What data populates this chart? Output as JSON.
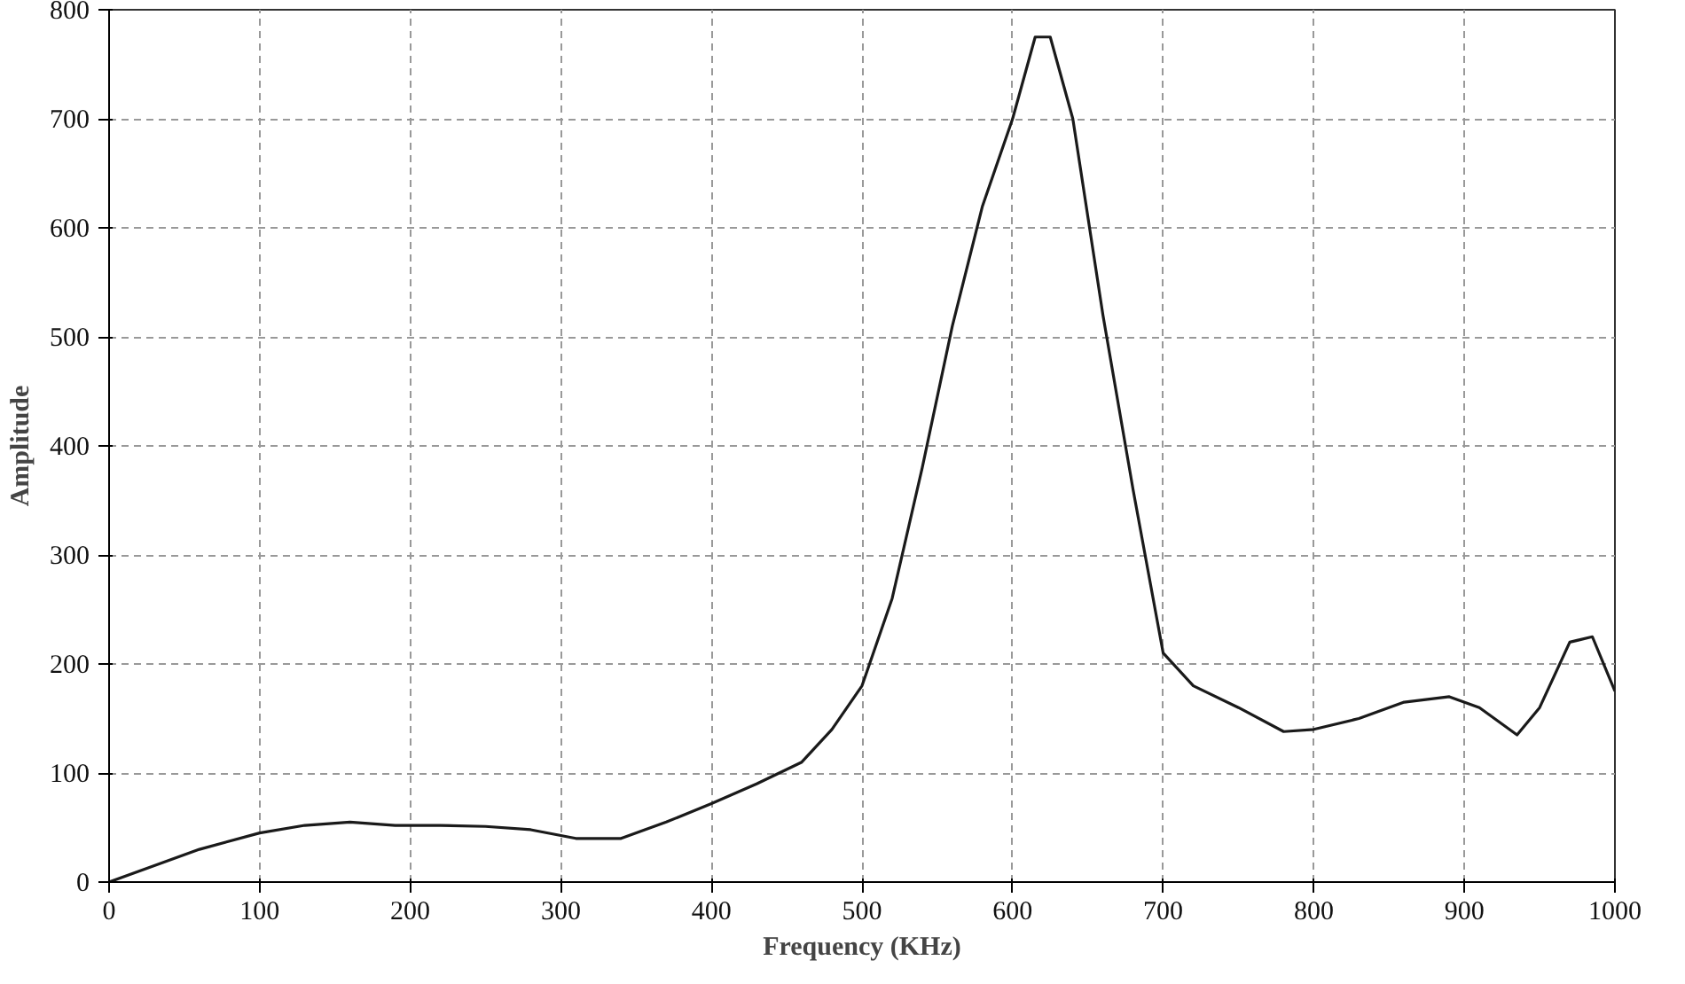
{
  "chart_data": {
    "type": "line",
    "xlabel": "Frequency (KHz)",
    "ylabel": "Amplitude",
    "x": [
      0,
      30,
      60,
      100,
      130,
      160,
      190,
      220,
      250,
      280,
      310,
      340,
      370,
      400,
      430,
      460,
      480,
      500,
      520,
      540,
      560,
      580,
      600,
      615,
      625,
      640,
      660,
      680,
      700,
      720,
      750,
      780,
      800,
      830,
      860,
      890,
      910,
      935,
      950,
      970,
      985,
      1000
    ],
    "series": [
      {
        "color": "#1a1a1a",
        "values": [
          0,
          15,
          30,
          45,
          52,
          55,
          52,
          52,
          51,
          48,
          40,
          40,
          55,
          72,
          90,
          110,
          140,
          180,
          260,
          380,
          510,
          620,
          700,
          775,
          775,
          700,
          520,
          360,
          210,
          180,
          160,
          138,
          140,
          150,
          165,
          170,
          160,
          135,
          160,
          220,
          225,
          175
        ]
      }
    ],
    "xlim": [
      0,
      1000
    ],
    "ylim": [
      0,
      800
    ],
    "xticks": [
      0,
      100,
      200,
      300,
      400,
      500,
      600,
      700,
      800,
      900,
      1000
    ],
    "yticks": [
      0,
      100,
      200,
      300,
      400,
      500,
      600,
      700,
      800
    ],
    "grid": true,
    "line_style": "solid",
    "marker": "none"
  }
}
